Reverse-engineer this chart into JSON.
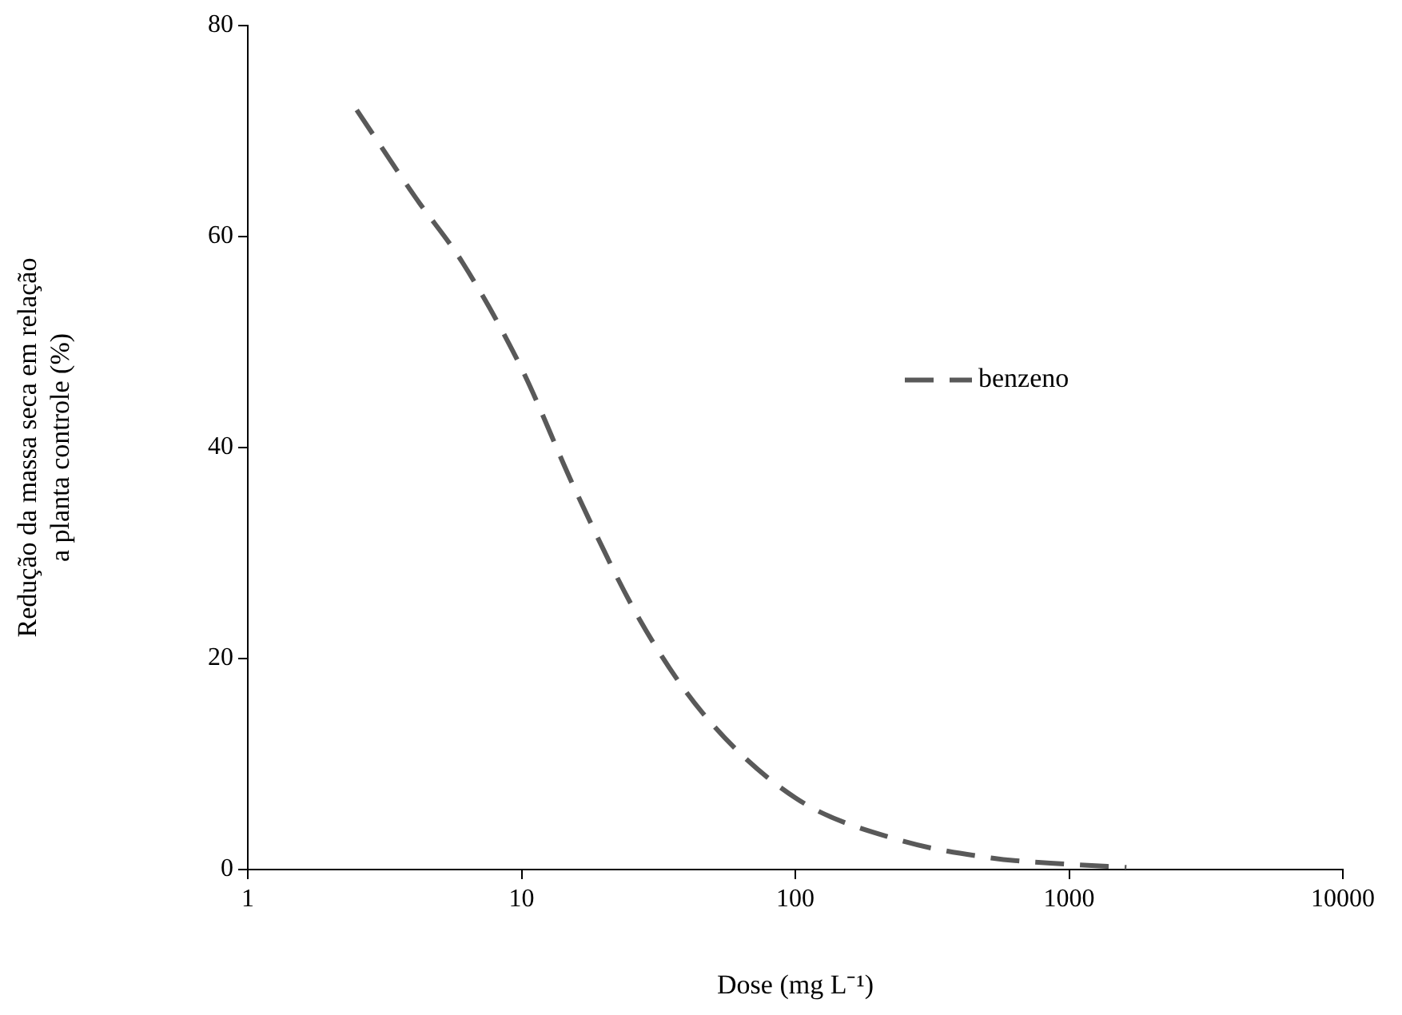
{
  "chart_data": {
    "type": "line",
    "xlabel": "Dose (mg L⁻¹)",
    "ylabel": "Redução da massa seca em relação\na planta controle (%)",
    "log": "x",
    "xlim": [
      1,
      10000
    ],
    "xticks": [
      1,
      10,
      100,
      1000,
      10000
    ],
    "ylim": [
      0,
      80
    ],
    "yticks": [
      0,
      20,
      40,
      60,
      80
    ],
    "grid": false,
    "legend": "right",
    "marker": "none",
    "line_style": "dashed",
    "series": [
      {
        "name": "benzeno",
        "color": "#595959",
        "x": [
          2.5,
          4.1,
          6.1,
          10,
          15.7,
          27,
          46,
          100,
          232,
          519,
          1000,
          1620
        ],
        "values": [
          72,
          63.7,
          57.5,
          47.5,
          36,
          23.7,
          14.8,
          6.8,
          2.9,
          1.1,
          0.5,
          0.2
        ]
      }
    ]
  }
}
